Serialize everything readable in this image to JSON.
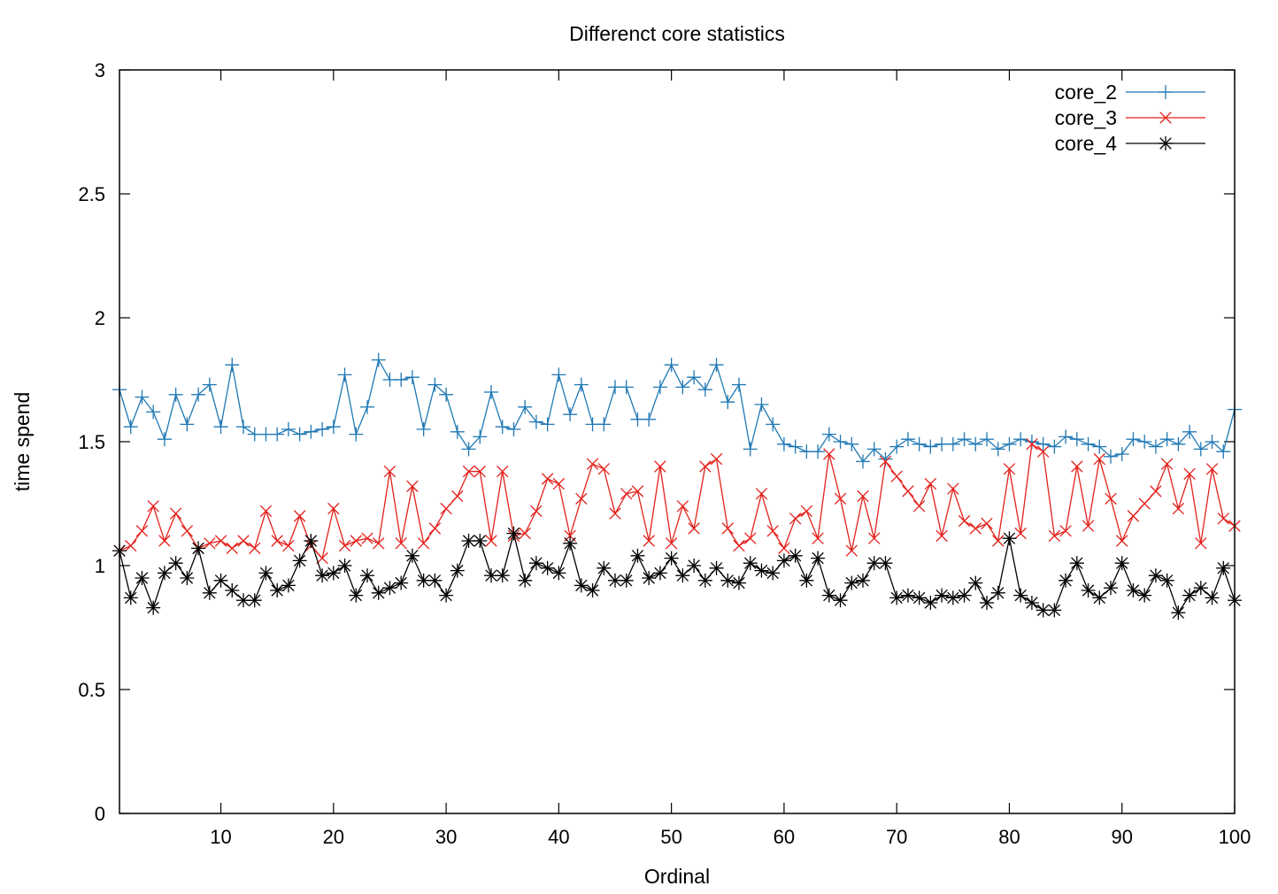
{
  "chart_data": {
    "type": "line",
    "title": "Differenct core statistics",
    "xlabel": "Ordinal",
    "ylabel": "time spend",
    "xlim": [
      1,
      100
    ],
    "ylim": [
      0,
      3
    ],
    "xticks": [
      10,
      20,
      30,
      40,
      50,
      60,
      70,
      80,
      90,
      100
    ],
    "yticks": [
      0,
      0.5,
      1,
      1.5,
      2,
      2.5,
      3
    ],
    "ytick_labels": [
      "0",
      "0.5",
      "1",
      "1.5",
      "2",
      "2.5",
      "3"
    ],
    "grid": false,
    "legend_position": "top-right",
    "x": [
      1,
      2,
      3,
      4,
      5,
      6,
      7,
      8,
      9,
      10,
      11,
      12,
      13,
      14,
      15,
      16,
      17,
      18,
      19,
      20,
      21,
      22,
      23,
      24,
      25,
      26,
      27,
      28,
      29,
      30,
      31,
      32,
      33,
      34,
      35,
      36,
      37,
      38,
      39,
      40,
      41,
      42,
      43,
      44,
      45,
      46,
      47,
      48,
      49,
      50,
      51,
      52,
      53,
      54,
      55,
      56,
      57,
      58,
      59,
      60,
      61,
      62,
      63,
      64,
      65,
      66,
      67,
      68,
      69,
      70,
      71,
      72,
      73,
      74,
      75,
      76,
      77,
      78,
      79,
      80,
      81,
      82,
      83,
      84,
      85,
      86,
      87,
      88,
      89,
      90,
      91,
      92,
      93,
      94,
      95,
      96,
      97,
      98,
      99,
      100
    ],
    "series": [
      {
        "name": "core_2",
        "color": "#1f78b4",
        "marker": "plus",
        "values": [
          1.71,
          1.56,
          1.68,
          1.62,
          1.51,
          1.69,
          1.57,
          1.69,
          1.73,
          1.56,
          1.81,
          1.56,
          1.53,
          1.53,
          1.53,
          1.55,
          1.53,
          1.54,
          1.55,
          1.56,
          1.77,
          1.53,
          1.64,
          1.83,
          1.75,
          1.75,
          1.76,
          1.55,
          1.73,
          1.69,
          1.54,
          1.47,
          1.52,
          1.7,
          1.56,
          1.55,
          1.64,
          1.58,
          1.57,
          1.77,
          1.61,
          1.73,
          1.57,
          1.57,
          1.72,
          1.72,
          1.59,
          1.59,
          1.72,
          1.81,
          1.72,
          1.76,
          1.71,
          1.81,
          1.66,
          1.73,
          1.47,
          1.65,
          1.57,
          1.49,
          1.48,
          1.46,
          1.46,
          1.53,
          1.5,
          1.49,
          1.42,
          1.47,
          1.43,
          1.48,
          1.51,
          1.49,
          1.48,
          1.49,
          1.49,
          1.51,
          1.49,
          1.51,
          1.47,
          1.49,
          1.51,
          1.5,
          1.49,
          1.48,
          1.52,
          1.51,
          1.49,
          1.48,
          1.44,
          1.45,
          1.51,
          1.5,
          1.48,
          1.51,
          1.49,
          1.54,
          1.47,
          1.5,
          1.46,
          1.63
        ]
      },
      {
        "name": "core_3",
        "color": "#e3211c",
        "marker": "cross",
        "values": [
          1.06,
          1.08,
          1.14,
          1.24,
          1.1,
          1.21,
          1.14,
          1.07,
          1.09,
          1.1,
          1.07,
          1.1,
          1.07,
          1.22,
          1.1,
          1.08,
          1.2,
          1.08,
          1.03,
          1.23,
          1.08,
          1.1,
          1.11,
          1.09,
          1.38,
          1.09,
          1.32,
          1.09,
          1.15,
          1.23,
          1.28,
          1.38,
          1.38,
          1.1,
          1.38,
          1.12,
          1.13,
          1.22,
          1.35,
          1.33,
          1.12,
          1.27,
          1.41,
          1.39,
          1.21,
          1.29,
          1.3,
          1.1,
          1.4,
          1.09,
          1.24,
          1.15,
          1.4,
          1.43,
          1.15,
          1.08,
          1.11,
          1.29,
          1.14,
          1.07,
          1.19,
          1.22,
          1.11,
          1.45,
          1.27,
          1.06,
          1.28,
          1.11,
          1.42,
          1.36,
          1.3,
          1.24,
          1.33,
          1.12,
          1.31,
          1.18,
          1.15,
          1.17,
          1.1,
          1.39,
          1.13,
          1.49,
          1.46,
          1.12,
          1.14,
          1.4,
          1.16,
          1.43,
          1.27,
          1.1,
          1.2,
          1.25,
          1.3,
          1.41,
          1.23,
          1.37,
          1.09,
          1.39,
          1.19,
          1.16
        ]
      },
      {
        "name": "core_4",
        "color": "#000000",
        "marker": "star",
        "values": [
          1.06,
          0.87,
          0.95,
          0.83,
          0.97,
          1.01,
          0.95,
          1.07,
          0.89,
          0.94,
          0.9,
          0.86,
          0.86,
          0.97,
          0.9,
          0.92,
          1.02,
          1.1,
          0.96,
          0.97,
          1.0,
          0.88,
          0.96,
          0.89,
          0.91,
          0.93,
          1.04,
          0.94,
          0.94,
          0.88,
          0.98,
          1.1,
          1.1,
          0.96,
          0.96,
          1.13,
          0.94,
          1.01,
          0.99,
          0.97,
          1.09,
          0.92,
          0.9,
          0.99,
          0.94,
          0.94,
          1.04,
          0.95,
          0.97,
          1.03,
          0.96,
          1.0,
          0.94,
          0.99,
          0.94,
          0.93,
          1.01,
          0.98,
          0.97,
          1.02,
          1.04,
          0.94,
          1.03,
          0.88,
          0.86,
          0.93,
          0.94,
          1.01,
          1.01,
          0.87,
          0.88,
          0.87,
          0.85,
          0.88,
          0.87,
          0.88,
          0.93,
          0.85,
          0.89,
          1.11,
          0.88,
          0.85,
          0.82,
          0.82,
          0.94,
          1.01,
          0.9,
          0.87,
          0.91,
          1.01,
          0.9,
          0.88,
          0.96,
          0.94,
          0.81,
          0.88,
          0.91,
          0.87,
          0.99,
          0.86
        ]
      }
    ]
  }
}
